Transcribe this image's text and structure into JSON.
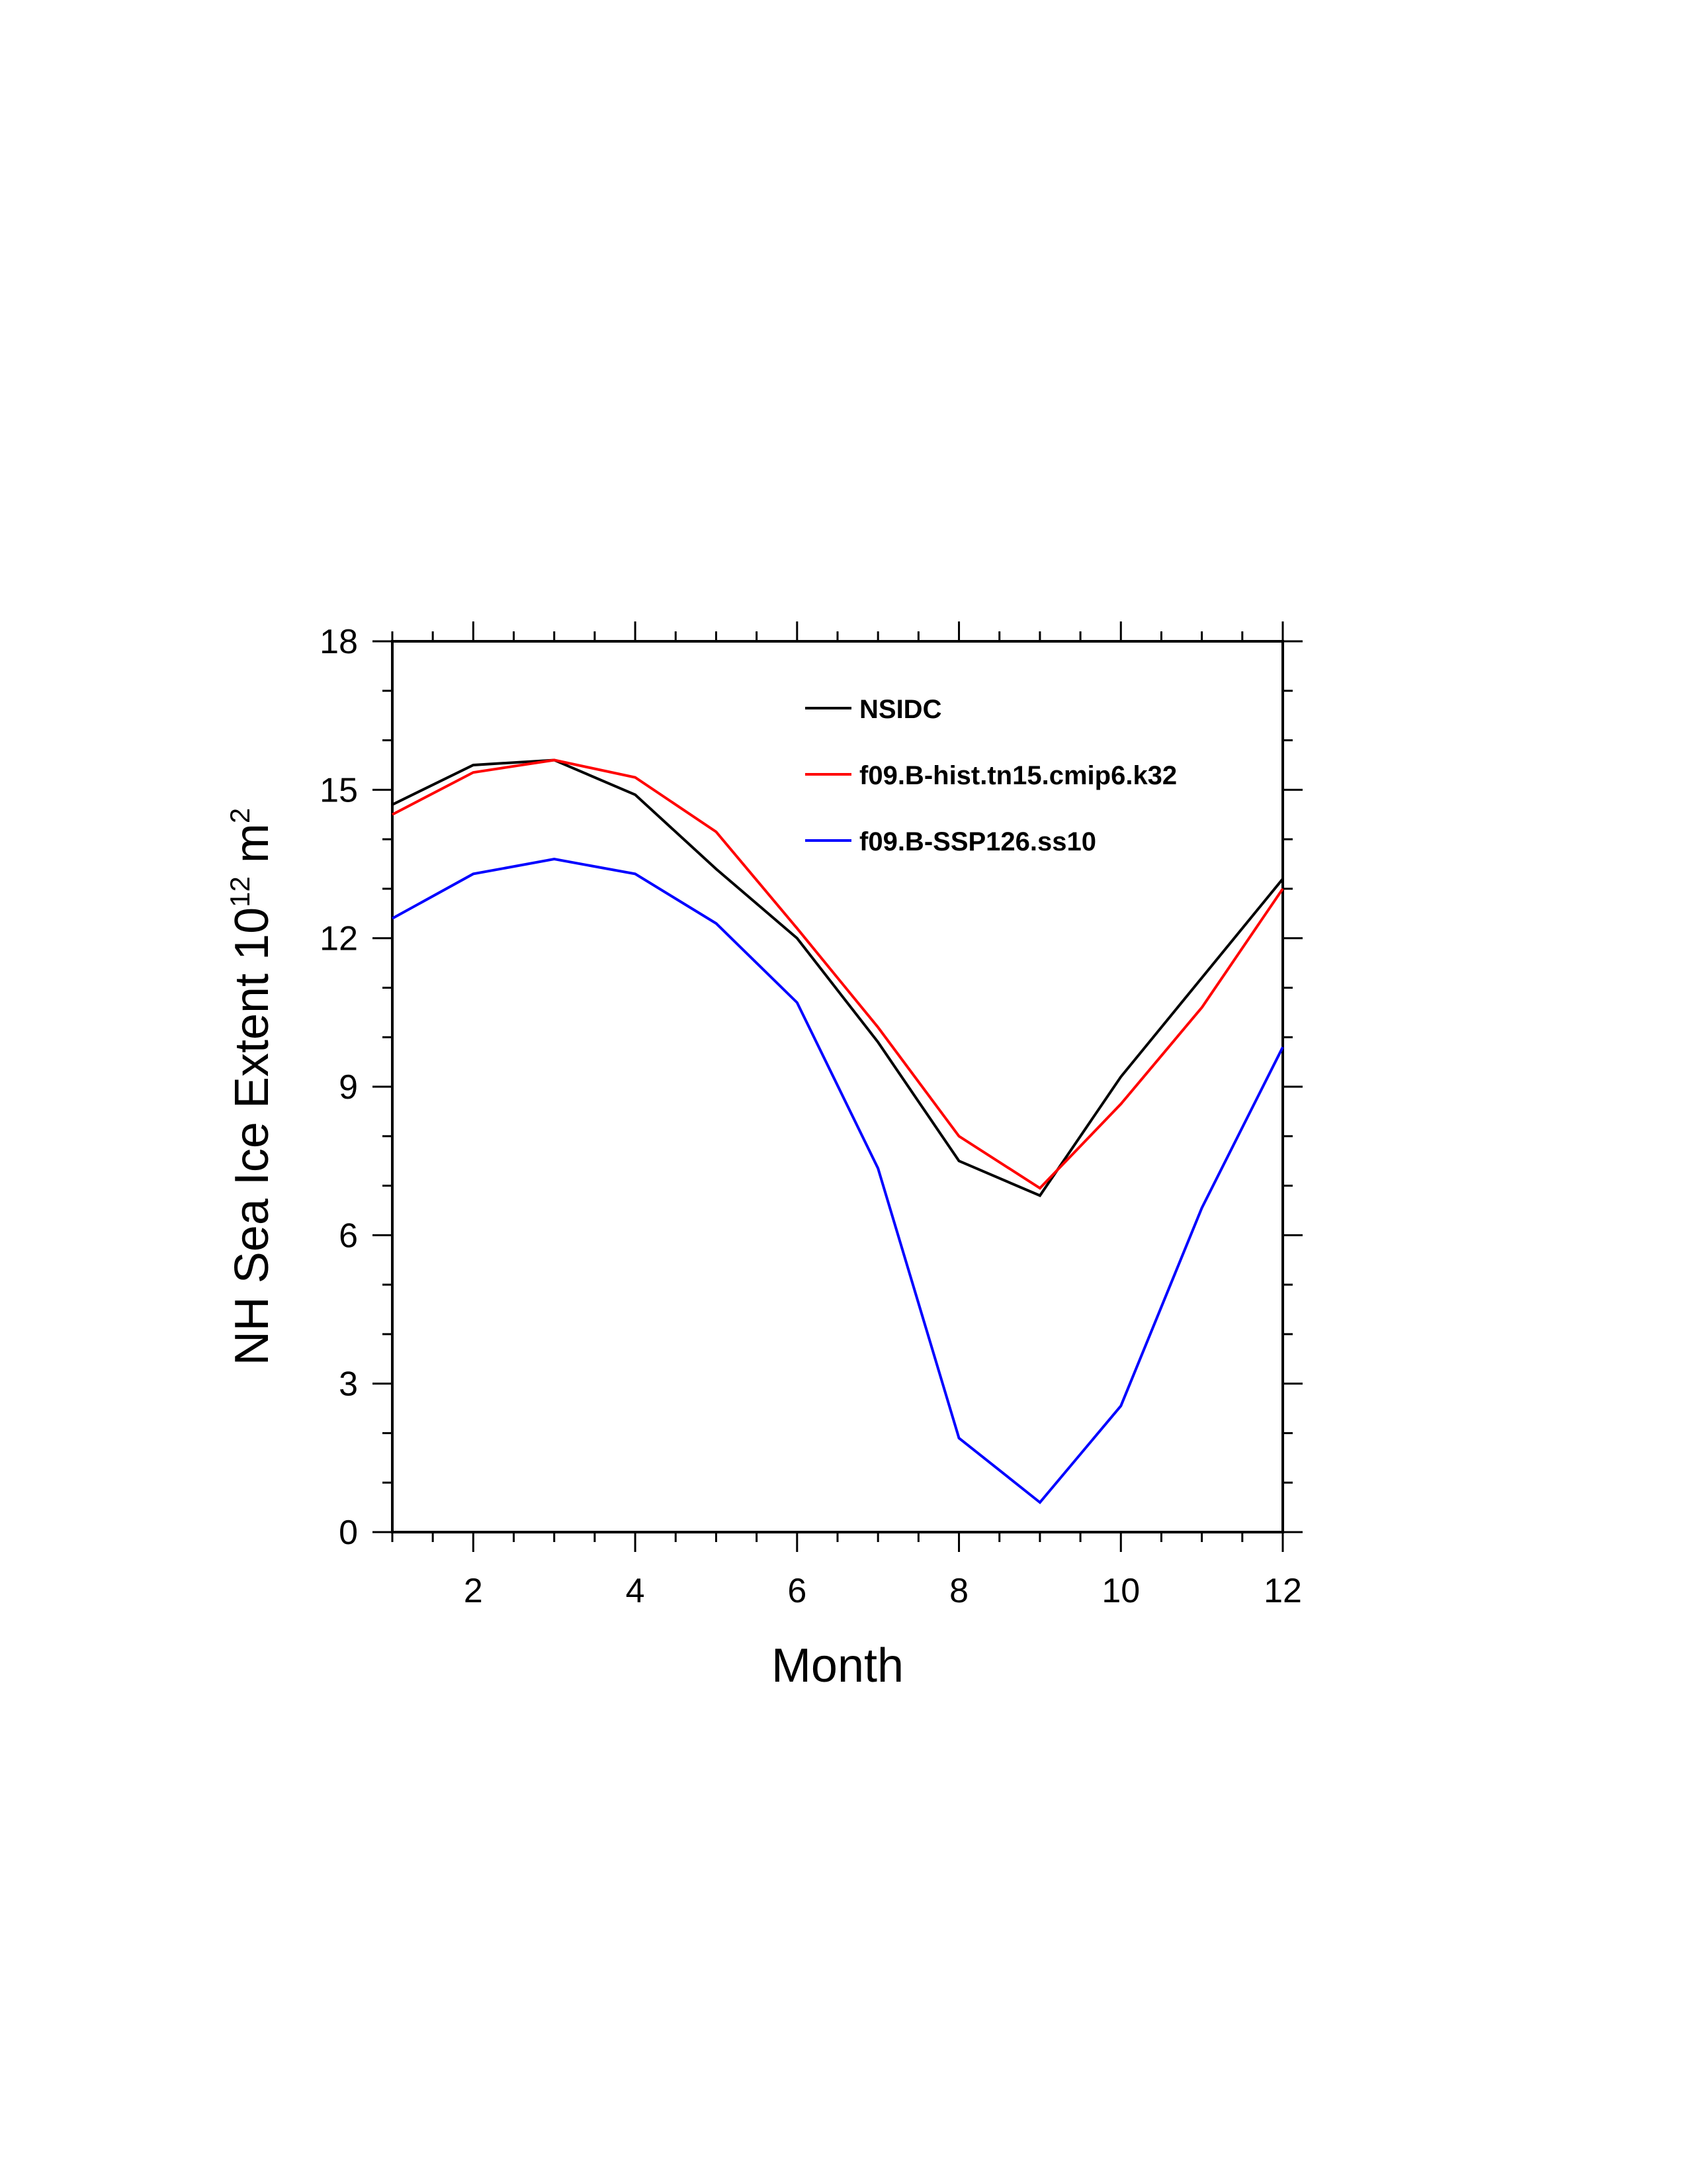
{
  "chart_data": {
    "type": "line",
    "title": "",
    "xlabel": "Month",
    "ylabel": "NH Sea Ice Extent 10",
    "ylabel_exp1": "12",
    "ylabel_unit": " m",
    "ylabel_exp2": "2",
    "xlim": [
      1,
      12
    ],
    "ylim": [
      0,
      18
    ],
    "xticks": [
      2,
      4,
      6,
      8,
      10,
      12
    ],
    "yticks": [
      0,
      3,
      6,
      9,
      12,
      15,
      18
    ],
    "x_minor_step": 0.5,
    "y_minor_step": 1,
    "grid": false,
    "legend_position": "top-right",
    "x": [
      1,
      2,
      3,
      4,
      5,
      6,
      7,
      8,
      9,
      10,
      11,
      12
    ],
    "series": [
      {
        "name": "NSIDC",
        "color": "#000000",
        "values": [
          14.7,
          15.5,
          15.6,
          14.9,
          13.4,
          12.0,
          9.9,
          7.5,
          6.8,
          9.2,
          11.2,
          13.2
        ]
      },
      {
        "name": "f09.B-hist.tn15.cmip6.k32",
        "color": "#ff0000",
        "values": [
          14.5,
          15.35,
          15.6,
          15.25,
          14.15,
          12.2,
          10.2,
          8.0,
          6.95,
          8.65,
          10.6,
          13.0
        ]
      },
      {
        "name": "f09.B-SSP126.ss10",
        "color": "#0000ff",
        "values": [
          12.4,
          13.3,
          13.6,
          13.3,
          12.3,
          10.7,
          7.35,
          1.9,
          0.6,
          2.55,
          6.55,
          9.8
        ]
      }
    ]
  }
}
